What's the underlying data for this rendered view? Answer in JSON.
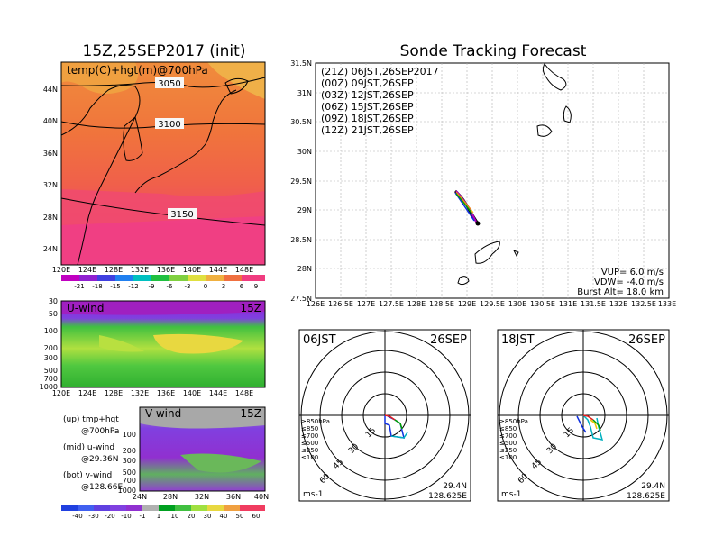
{
  "left": {
    "title": "15Z,25SEP2017 (init)",
    "map_label": "temp(C)+hgt(m)@700hPa",
    "contours": [
      "3050",
      "3100",
      "3150"
    ],
    "lat_ticks": [
      "44N",
      "40N",
      "36N",
      "32N",
      "28N",
      "24N"
    ],
    "lon_ticks": [
      "120E",
      "124E",
      "128E",
      "132E",
      "136E",
      "140E",
      "144E",
      "148E"
    ],
    "temp_colorbar": [
      "-21",
      "-18",
      "-15",
      "-12",
      "-9",
      "-6",
      "-3",
      "0",
      "3",
      "6",
      "9"
    ],
    "uwind": {
      "label": "U-wind",
      "time": "15Z",
      "p_ticks": [
        "30",
        "50",
        "100",
        "200",
        "300",
        "500",
        "700",
        "1000"
      ]
    },
    "vwind": {
      "label": "V-wind",
      "time": "15Z",
      "p_ticks": [
        "100",
        "200",
        "300",
        "500",
        "700",
        "1000"
      ],
      "lat_ticks": [
        "24N",
        "28N",
        "32N",
        "36N",
        "40N"
      ]
    },
    "notes": [
      [
        "(up) tmp+hgt",
        "@700hPa"
      ],
      [
        "(mid) u-wind",
        "@29.36N"
      ],
      [
        "(bot) v-wind",
        "@128.66E"
      ]
    ],
    "wind_colorbar": [
      "-40",
      "-30",
      "-20",
      "-10",
      "-1",
      "1",
      "10",
      "20",
      "30",
      "40",
      "50",
      "60"
    ]
  },
  "right": {
    "title": "Sonde Tracking Forecast",
    "legend": [
      {
        "text": "(21Z) 06JST,26SEP2017",
        "color": "#000000"
      },
      {
        "text": "(00Z) 09JST,26SEP",
        "color": "#b000c0"
      },
      {
        "text": "(03Z) 12JST,26SEP",
        "color": "#1030e0"
      },
      {
        "text": "(06Z) 15JST,26SEP",
        "color": "#00a000"
      },
      {
        "text": "(09Z) 18JST,26SEP",
        "color": "#e8c800"
      },
      {
        "text": "(12Z) 21JST,26SEP",
        "color": "#f08020"
      }
    ],
    "lat_ticks": [
      "31.5N",
      "31N",
      "30.5N",
      "30N",
      "29.5N",
      "29N",
      "28.5N",
      "28N",
      "27.5N"
    ],
    "lon_ticks": [
      "126E",
      "126.5E",
      "127E",
      "127.5E",
      "128E",
      "128.5E",
      "129E",
      "129.5E",
      "130E",
      "130.5E",
      "131E",
      "131.5E",
      "132E",
      "132.5E",
      "133E"
    ],
    "params": [
      "VUP= 6.0 m/s",
      "VDW= -4.0 m/s",
      "Burst Alt= 18.0 km"
    ]
  },
  "polar": [
    {
      "time": "06JST",
      "date": "26SEP",
      "rings": [
        "15",
        "30",
        "45",
        "60"
      ],
      "unit": "ms-1",
      "lat": "29.4N",
      "lon": "128.625E",
      "levels": [
        {
          "text": "≥850hPa",
          "color": "#e02020"
        },
        {
          "text": "≤850",
          "color": "#f0a000"
        },
        {
          "text": "≤700",
          "color": "#e0d000"
        },
        {
          "text": "≤500",
          "color": "#00b000"
        },
        {
          "text": "≤250",
          "color": "#00b0c0"
        },
        {
          "text": "≤100",
          "color": "#2040e0"
        }
      ]
    },
    {
      "time": "18JST",
      "date": "26SEP",
      "rings": [
        "15",
        "30",
        "45",
        "60"
      ],
      "unit": "ms-1",
      "lat": "29.4N",
      "lon": "128.625E",
      "levels": [
        {
          "text": "≥850hPa",
          "color": "#e02020"
        },
        {
          "text": "≤850",
          "color": "#f0a000"
        },
        {
          "text": "≤700",
          "color": "#e0d000"
        },
        {
          "text": "≤500",
          "color": "#00b000"
        },
        {
          "text": "≤250",
          "color": "#00b0c0"
        },
        {
          "text": "≤100",
          "color": "#2040e0"
        }
      ]
    }
  ]
}
